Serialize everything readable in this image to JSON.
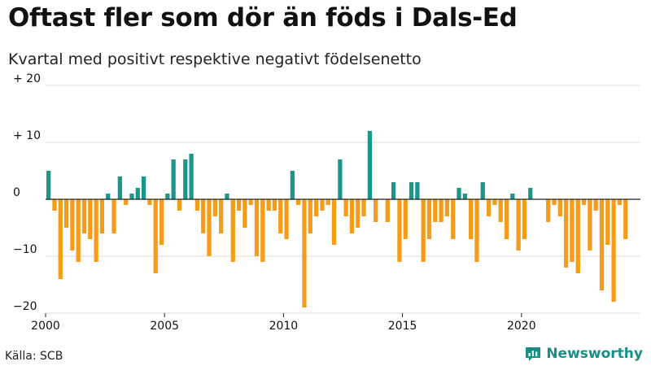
{
  "header": {
    "title": "Oftast fler som dör än föds i Dals-Ed",
    "subtitle": "Kvartal med positivt respektive negativt födelsenetto"
  },
  "footer": {
    "source": "Källa: SCB",
    "brand": "Newsworthy"
  },
  "colors": {
    "positive": "#1a968a",
    "negative": "#f59c1a",
    "grid": "#d9d9d9",
    "axis": "#222222",
    "brand": "#168f86"
  },
  "chart_data": {
    "type": "bar",
    "title": "Oftast fler som dör än föds i Dals-Ed",
    "subtitle": "Kvartal med positivt respektive negativt födelsenetto",
    "xlabel": "",
    "ylabel": "",
    "ylim": [
      -20,
      20
    ],
    "y_ticks": [
      {
        "value": 20,
        "label": "+ 20"
      },
      {
        "value": 10,
        "label": "+ 10"
      },
      {
        "value": 0,
        "label": "0"
      },
      {
        "value": -10,
        "label": "−10"
      },
      {
        "value": -20,
        "label": "−20"
      }
    ],
    "x_ticks": [
      "2000",
      "2005",
      "2010",
      "2015",
      "2020"
    ],
    "start_year": 2000,
    "period": "quarter",
    "grid": true,
    "values": [
      5,
      -2,
      -14,
      -5,
      -9,
      -11,
      -6,
      -7,
      -11,
      -6,
      1,
      -6,
      4,
      -1,
      1,
      2,
      4,
      -1,
      -13,
      -8,
      1,
      7,
      -2,
      7,
      8,
      -2,
      -6,
      -10,
      -3,
      -6,
      1,
      -11,
      -2,
      -5,
      -1,
      -10,
      -11,
      -2,
      -2,
      -6,
      -7,
      5,
      -1,
      -19,
      -6,
      -3,
      -2,
      -1,
      -8,
      7,
      -3,
      -6,
      -5,
      -3,
      12,
      -4,
      0,
      -4,
      3,
      -11,
      -7,
      3,
      3,
      -11,
      -7,
      -4,
      -4,
      -3,
      -7,
      2,
      1,
      -7,
      -11,
      3,
      -3,
      -1,
      -4,
      -7,
      1,
      -9,
      -7,
      2,
      0,
      0,
      -4,
      -1,
      -3,
      -12,
      -11,
      -13,
      -1,
      -9,
      -2,
      -16,
      -8,
      -18,
      -1,
      -7
    ]
  }
}
